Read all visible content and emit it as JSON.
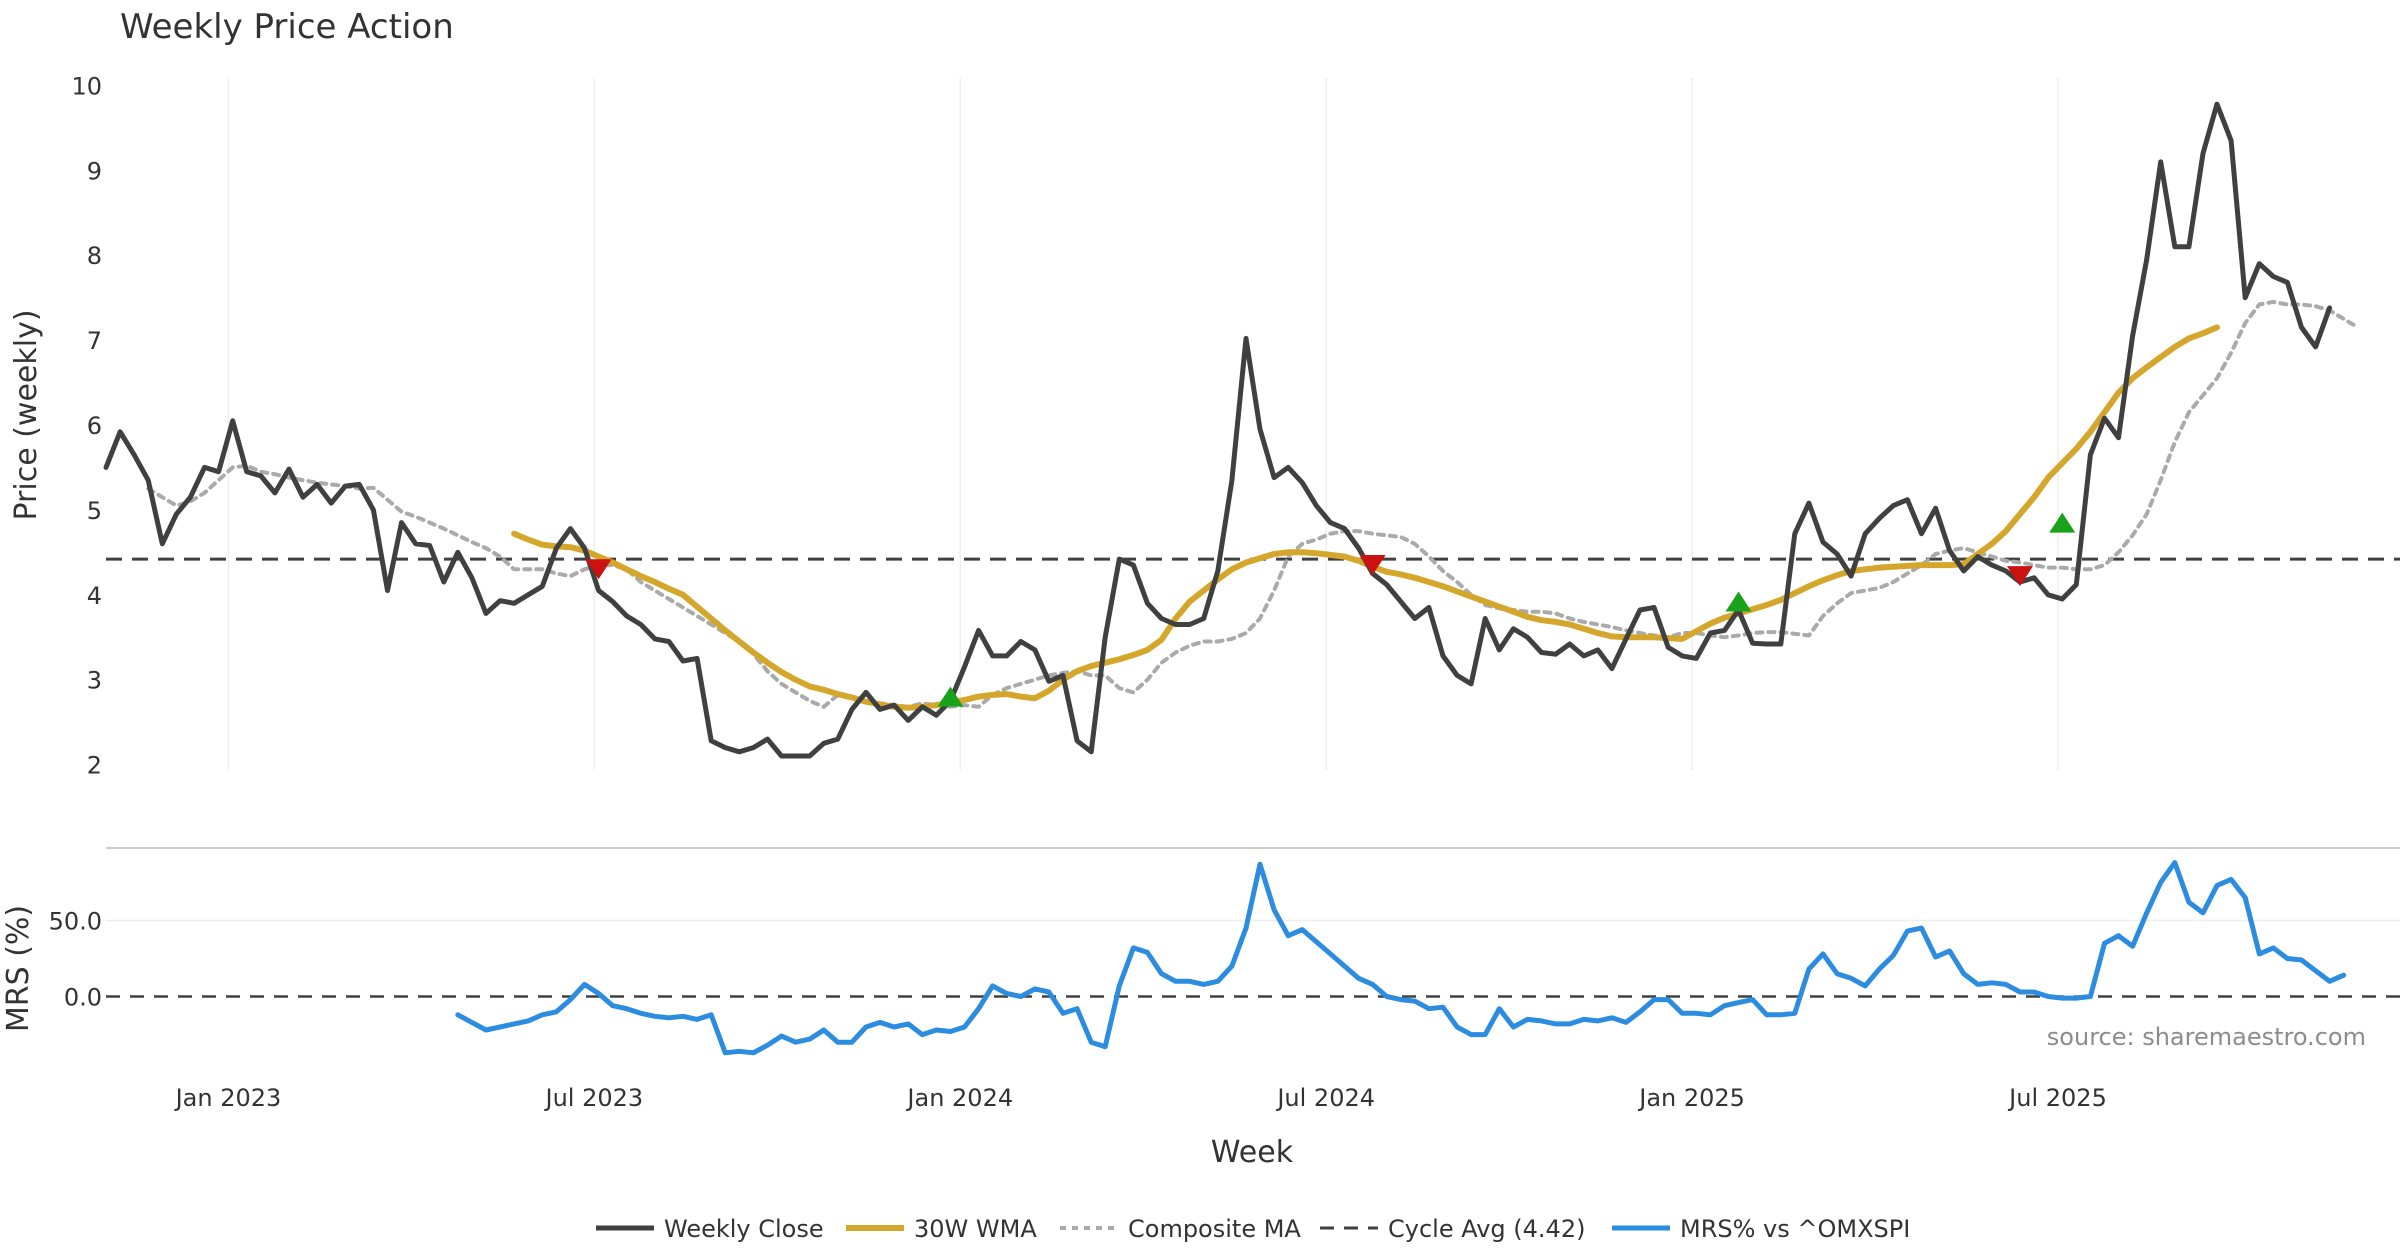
{
  "chart_data": {
    "type": "line",
    "title": "Weekly Price Action",
    "xlabel": "Week",
    "source": "source: sharemaestro.com",
    "x_ticks": [
      "Jan 2023",
      "Jul 2023",
      "Jan 2024",
      "Jul 2024",
      "Jan 2025",
      "Jul 2025"
    ],
    "price_panel": {
      "ylabel": "Price (weekly)",
      "ylim": [
        1.7,
        10.3
      ],
      "y_ticks": [
        "2",
        "3",
        "4",
        "5",
        "6",
        "7",
        "8",
        "9",
        "10"
      ],
      "cycle_avg": 4.42
    },
    "mrs_panel": {
      "ylabel": "MRS (%)",
      "ylim": [
        -45,
        95
      ],
      "y_ticks": [
        "0.0",
        "50.0"
      ]
    },
    "x_range": [
      0,
      163
    ],
    "series": [
      {
        "name": "Weekly Close",
        "color": "#404040",
        "start": 0,
        "values": [
          5.5,
          5.92,
          5.65,
          5.35,
          4.6,
          4.95,
          5.15,
          5.5,
          5.45,
          6.05,
          5.45,
          5.4,
          5.2,
          5.48,
          5.15,
          5.3,
          5.08,
          5.28,
          5.3,
          5.0,
          4.05,
          4.85,
          4.6,
          4.58,
          4.15,
          4.5,
          4.2,
          3.78,
          3.93,
          3.9,
          4.0,
          4.1,
          4.55,
          4.78,
          4.55,
          4.05,
          3.92,
          3.75,
          3.65,
          3.48,
          3.45,
          3.22,
          3.25,
          2.28,
          2.2,
          2.15,
          2.2,
          2.3,
          2.1,
          2.1,
          2.1,
          2.25,
          2.3,
          2.65,
          2.85,
          2.65,
          2.7,
          2.52,
          2.68,
          2.58,
          2.75,
          3.15,
          3.58,
          3.28,
          3.28,
          3.45,
          3.35,
          2.98,
          3.05,
          2.28,
          2.15,
          3.5,
          4.42,
          4.35,
          3.9,
          3.72,
          3.65,
          3.65,
          3.72,
          4.28,
          5.35,
          7.02,
          5.95,
          5.38,
          5.5,
          5.32,
          5.05,
          4.85,
          4.78,
          4.55,
          4.25,
          4.12,
          3.92,
          3.72,
          3.85,
          3.28,
          3.05,
          2.95,
          3.72,
          3.35,
          3.6,
          3.5,
          3.32,
          3.3,
          3.42,
          3.28,
          3.35,
          3.13,
          3.48,
          3.82,
          3.85,
          3.38,
          3.28,
          3.25,
          3.55,
          3.58,
          3.82,
          3.43,
          3.42,
          3.42,
          4.72,
          5.08,
          4.62,
          4.48,
          4.22,
          4.72,
          4.9,
          5.05,
          5.12,
          4.72,
          5.02,
          4.52,
          4.28,
          4.45,
          4.35,
          4.28,
          4.15,
          4.2,
          4.0,
          3.95,
          4.12,
          5.65,
          6.08,
          5.85,
          7.05,
          7.95,
          9.1,
          8.1,
          8.1,
          9.2,
          9.78,
          9.35,
          7.5,
          7.9,
          7.75,
          7.68,
          7.15,
          6.92,
          7.38
        ]
      },
      {
        "name": "30W WMA",
        "color": "#d4a72c",
        "start": 29,
        "values": [
          4.72,
          4.65,
          4.59,
          4.57,
          4.56,
          4.52,
          4.45,
          4.38,
          4.3,
          4.22,
          4.15,
          4.07,
          4.0,
          3.86,
          3.72,
          3.58,
          3.45,
          3.32,
          3.2,
          3.09,
          3.0,
          2.92,
          2.88,
          2.83,
          2.79,
          2.74,
          2.71,
          2.68,
          2.67,
          2.68,
          2.7,
          2.73,
          2.76,
          2.8,
          2.82,
          2.83,
          2.8,
          2.78,
          2.87,
          3.0,
          3.1,
          3.16,
          3.2,
          3.24,
          3.29,
          3.35,
          3.47,
          3.72,
          3.92,
          4.05,
          4.18,
          4.3,
          4.38,
          4.43,
          4.48,
          4.5,
          4.5,
          4.49,
          4.47,
          4.45,
          4.4,
          4.33,
          4.27,
          4.24,
          4.2,
          4.15,
          4.1,
          4.04,
          3.98,
          3.92,
          3.86,
          3.8,
          3.74,
          3.7,
          3.68,
          3.65,
          3.6,
          3.55,
          3.51,
          3.5,
          3.5,
          3.5,
          3.49,
          3.48,
          3.57,
          3.66,
          3.73,
          3.78,
          3.83,
          3.88,
          3.94,
          4.02,
          4.1,
          4.17,
          4.23,
          4.28,
          4.3,
          4.32,
          4.33,
          4.34,
          4.35,
          4.35,
          4.35,
          4.36,
          4.48,
          4.6,
          4.75,
          4.95,
          5.15,
          5.38,
          5.55,
          5.72,
          5.92,
          6.15,
          6.38,
          6.55,
          6.68,
          6.8,
          6.92,
          7.02,
          7.08,
          7.15
        ]
      },
      {
        "name": "Composite MA",
        "color": "#aaaaaa",
        "start": 3,
        "values": [
          5.25,
          5.15,
          5.05,
          5.1,
          5.2,
          5.35,
          5.5,
          5.52,
          5.45,
          5.42,
          5.38,
          5.35,
          5.32,
          5.3,
          5.28,
          5.25,
          5.26,
          5.12,
          4.98,
          4.92,
          4.85,
          4.78,
          4.7,
          4.62,
          4.55,
          4.45,
          4.3,
          4.3,
          4.3,
          4.25,
          4.22,
          4.3,
          4.35,
          4.35,
          4.3,
          4.15,
          4.05,
          3.95,
          3.85,
          3.75,
          3.65,
          3.55,
          3.45,
          3.3,
          3.1,
          2.95,
          2.85,
          2.75,
          2.68,
          2.82,
          2.78,
          2.75,
          2.72,
          2.7,
          2.68,
          2.72,
          2.7,
          2.68,
          2.7,
          2.68,
          2.82,
          2.9,
          2.95,
          3.0,
          3.05,
          3.08,
          3.1,
          3.05,
          3.05,
          2.9,
          2.85,
          3.0,
          3.2,
          3.32,
          3.4,
          3.45,
          3.45,
          3.48,
          3.55,
          3.72,
          4.05,
          4.45,
          4.6,
          4.65,
          4.72,
          4.75,
          4.75,
          4.72,
          4.7,
          4.68,
          4.6,
          4.45,
          4.28,
          4.15,
          4.0,
          3.88,
          3.84,
          3.82,
          3.8,
          3.8,
          3.78,
          3.72,
          3.68,
          3.65,
          3.62,
          3.58,
          3.55,
          3.52,
          3.5,
          3.55,
          3.55,
          3.52,
          3.5,
          3.52,
          3.55,
          3.56,
          3.56,
          3.54,
          3.52,
          3.75,
          3.9,
          4.02,
          4.05,
          4.08,
          4.15,
          4.25,
          4.35,
          4.48,
          4.52,
          4.55,
          4.5,
          4.45,
          4.4,
          4.38,
          4.35,
          4.32,
          4.32,
          4.3,
          4.3,
          4.35,
          4.5,
          4.7,
          4.95,
          5.35,
          5.8,
          6.15,
          6.35,
          6.55,
          6.85,
          7.2,
          7.42,
          7.45,
          7.42,
          7.42,
          7.4,
          7.35,
          7.25,
          7.15
        ]
      },
      {
        "name": "MRS% vs ^OMXSPI",
        "color": "#2b8ce0",
        "panel": "mrs",
        "start": 25,
        "values": [
          -12,
          -17,
          -22,
          -20,
          -18,
          -16,
          -12,
          -10,
          -2,
          8,
          2,
          -6,
          -8,
          -11,
          -13,
          -14,
          -13,
          -15,
          -12,
          -37,
          -36,
          -37,
          -32,
          -26,
          -30,
          -28,
          -22,
          -30,
          -30,
          -20,
          -17,
          -20,
          -18,
          -25,
          -22,
          -23,
          -20,
          -8,
          7,
          2,
          0,
          5,
          3,
          -11,
          -8,
          -30,
          -33,
          7,
          32,
          29,
          15,
          10,
          10,
          8,
          10,
          20,
          45,
          87,
          57,
          40,
          44,
          36,
          28,
          20,
          12,
          8,
          0,
          -2,
          -3,
          -8,
          -7,
          -20,
          -25,
          -25,
          -8,
          -20,
          -15,
          -16,
          -18,
          -18,
          -15,
          -16,
          -14,
          -17,
          -10,
          -2,
          -2,
          -11,
          -11,
          -12,
          -6,
          -4,
          -2,
          -12,
          -12,
          -11,
          18,
          28,
          15,
          12,
          7,
          18,
          27,
          43,
          45,
          26,
          30,
          15,
          8,
          9,
          8,
          3,
          3,
          0,
          -1,
          -1,
          0,
          35,
          40,
          33,
          55,
          75,
          88,
          62,
          55,
          73,
          77,
          65,
          28,
          32,
          25,
          24,
          17,
          10,
          14
        ]
      }
    ],
    "cycle_avg_label": "Cycle Avg (4.42)",
    "signals": [
      {
        "type": "sell",
        "x": 35,
        "y": 4.3
      },
      {
        "type": "buy",
        "x": 60,
        "y": 2.8
      },
      {
        "type": "sell",
        "x": 90,
        "y": 4.35
      },
      {
        "type": "buy",
        "x": 116,
        "y": 3.92
      },
      {
        "type": "sell",
        "x": 136,
        "y": 4.22
      },
      {
        "type": "buy",
        "x": 139,
        "y": 4.85
      }
    ],
    "legend": [
      "Weekly Close",
      "30W WMA",
      "Composite MA",
      "Cycle Avg (4.42)",
      "MRS% vs ^OMXSPI"
    ]
  }
}
